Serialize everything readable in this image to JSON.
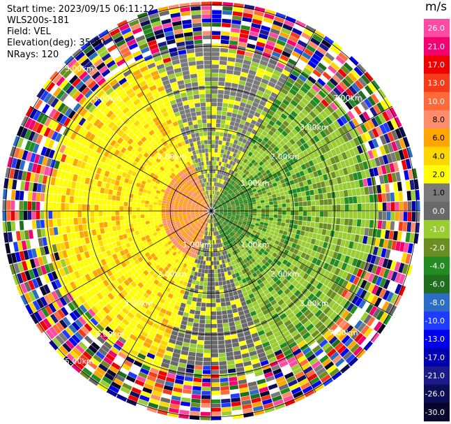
{
  "header": {
    "start_time": "Start time: 2023/09/15 06:11:12",
    "instrument": "WLS200s-181",
    "field": "Field: VEL",
    "elevation": "Elevation(deg): 35.30",
    "nrays": "NRays: 120"
  },
  "colorbar": {
    "unit": "m/s",
    "labels": [
      "26.0",
      "21.0",
      "17.0",
      "13.0",
      "10.0",
      "8.0",
      "6.0",
      "4.0",
      "2.0",
      "1.0",
      "0.0",
      "-1.0",
      "-2.0",
      "-4.0",
      "-6.0",
      "-8.0",
      "-10.0",
      "-13.0",
      "-17.0",
      "-21.0",
      "-26.0",
      "-30.0"
    ],
    "colors": [
      "#ff4aa3",
      "#f50070",
      "#f00000",
      "#f53b18",
      "#ff6a38",
      "#ff8c6a",
      "#ffa500",
      "#ffd700",
      "#ffff00",
      "#7a7a7a",
      "#696969",
      "#9acd32",
      "#6b8e23",
      "#228b22",
      "#1e6e1e",
      "#2b6cc4",
      "#1e3cff",
      "#0000ee",
      "#0000b0",
      "#1a1a8a",
      "#0d0d55",
      "#06062a"
    ]
  },
  "range_labels": {
    "r1": "1.00km",
    "r2": "2.00km",
    "r3": "3.00km",
    "r5": "5.00km",
    "r6": "6.00km",
    "r7": "7.00km"
  },
  "chart_data": {
    "type": "heatmap",
    "title": "",
    "rays": 120,
    "units": "m/s",
    "scale_min": -30.0,
    "scale_max": 26.0,
    "range_rings_km": [
      1,
      2,
      3,
      4,
      5,
      6,
      7
    ],
    "sectors": [
      {
        "direction": "west",
        "velocity_range": [
          1.0,
          8.0
        ]
      },
      {
        "direction": "north",
        "velocity_range": [
          -1.0,
          1.0
        ]
      },
      {
        "direction": "east",
        "velocity_range": [
          -6.0,
          -1.0
        ]
      },
      {
        "direction": "south",
        "velocity_range": [
          -1.0,
          1.0
        ]
      }
    ]
  }
}
